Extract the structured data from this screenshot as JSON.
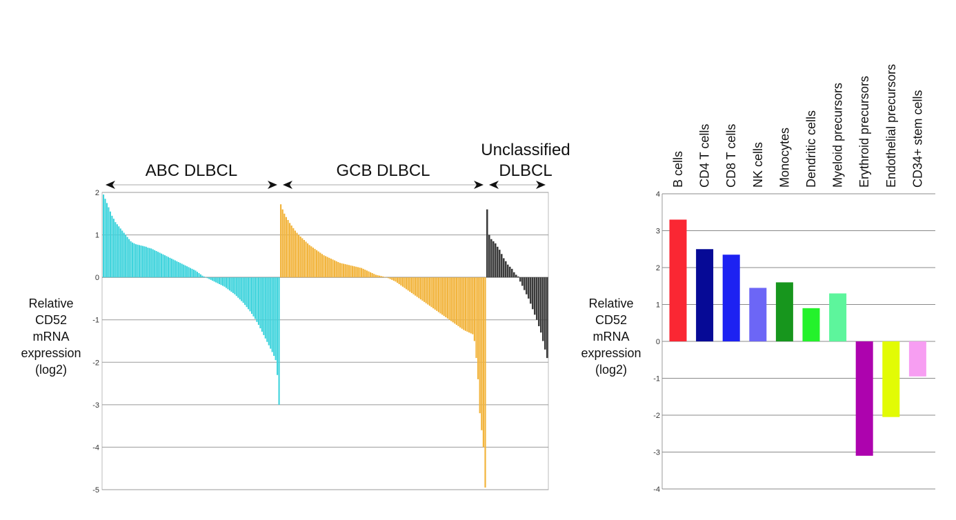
{
  "chart_data": [
    {
      "type": "bar",
      "ylabel_lines": [
        "Relative",
        "CD52",
        "mRNA",
        "expression",
        "(log2)"
      ],
      "ylim": [
        -5,
        2
      ],
      "yticks": [
        "2",
        "1",
        "0",
        "-1",
        "-2",
        "-3",
        "-4",
        "-5"
      ],
      "grid": true,
      "groups": [
        {
          "label_lines": [
            "ABC DLBCL"
          ],
          "color": "#3dd3dc",
          "values": [
            1.95,
            1.85,
            1.75,
            1.65,
            1.55,
            1.45,
            1.38,
            1.3,
            1.25,
            1.2,
            1.15,
            1.1,
            1.05,
            1.0,
            0.95,
            0.9,
            0.85,
            0.82,
            0.8,
            0.78,
            0.77,
            0.76,
            0.75,
            0.74,
            0.73,
            0.72,
            0.7,
            0.69,
            0.68,
            0.66,
            0.64,
            0.62,
            0.6,
            0.58,
            0.56,
            0.54,
            0.52,
            0.5,
            0.48,
            0.46,
            0.44,
            0.42,
            0.4,
            0.38,
            0.36,
            0.34,
            0.32,
            0.3,
            0.28,
            0.26,
            0.24,
            0.22,
            0.2,
            0.18,
            0.16,
            0.13,
            0.1,
            0.07,
            0.04,
            0.02,
            0.0,
            -0.02,
            -0.04,
            -0.06,
            -0.08,
            -0.1,
            -0.12,
            -0.14,
            -0.16,
            -0.18,
            -0.2,
            -0.22,
            -0.25,
            -0.28,
            -0.31,
            -0.34,
            -0.37,
            -0.4,
            -0.44,
            -0.48,
            -0.52,
            -0.56,
            -0.6,
            -0.65,
            -0.7,
            -0.75,
            -0.8,
            -0.86,
            -0.92,
            -0.98,
            -1.05,
            -1.12,
            -1.2,
            -1.28,
            -1.36,
            -1.44,
            -1.52,
            -1.6,
            -1.68,
            -1.76,
            -1.85,
            -1.95,
            -2.3,
            -3.0
          ]
        },
        {
          "label_lines": [
            "GCB DLBCL"
          ],
          "color": "#f2b43c",
          "values": [
            1.72,
            1.6,
            1.5,
            1.42,
            1.35,
            1.28,
            1.22,
            1.16,
            1.1,
            1.05,
            1.0,
            0.96,
            0.92,
            0.88,
            0.84,
            0.8,
            0.76,
            0.73,
            0.7,
            0.67,
            0.64,
            0.61,
            0.58,
            0.55,
            0.52,
            0.5,
            0.48,
            0.46,
            0.44,
            0.42,
            0.4,
            0.38,
            0.36,
            0.34,
            0.33,
            0.32,
            0.31,
            0.3,
            0.29,
            0.28,
            0.27,
            0.26,
            0.25,
            0.24,
            0.23,
            0.22,
            0.2,
            0.18,
            0.16,
            0.14,
            0.12,
            0.1,
            0.08,
            0.06,
            0.05,
            0.04,
            0.03,
            0.02,
            0.01,
            0.0,
            -0.02,
            -0.04,
            -0.06,
            -0.08,
            -0.1,
            -0.13,
            -0.16,
            -0.19,
            -0.22,
            -0.25,
            -0.28,
            -0.31,
            -0.34,
            -0.37,
            -0.4,
            -0.43,
            -0.46,
            -0.49,
            -0.52,
            -0.55,
            -0.58,
            -0.61,
            -0.64,
            -0.67,
            -0.7,
            -0.73,
            -0.76,
            -0.79,
            -0.82,
            -0.85,
            -0.88,
            -0.91,
            -0.94,
            -0.97,
            -1.0,
            -1.03,
            -1.06,
            -1.09,
            -1.12,
            -1.15,
            -1.18,
            -1.21,
            -1.24,
            -1.26,
            -1.28,
            -1.3,
            -1.32,
            -1.34,
            -1.5,
            -1.9,
            -2.4,
            -3.2,
            -3.6,
            -4.0,
            -4.95
          ]
        },
        {
          "label_lines": [
            "Unclassified",
            "DLBCL"
          ],
          "color": "#3a3a3a",
          "values": [
            1.6,
            1.0,
            0.9,
            0.85,
            0.8,
            0.72,
            0.65,
            0.55,
            0.45,
            0.38,
            0.3,
            0.25,
            0.2,
            0.12,
            0.06,
            0.02,
            -0.1,
            -0.2,
            -0.3,
            -0.4,
            -0.5,
            -0.62,
            -0.75,
            -0.88,
            -1.0,
            -1.15,
            -1.3,
            -1.5,
            -1.7,
            -1.9
          ]
        }
      ]
    },
    {
      "type": "bar",
      "ylabel_lines": [
        "Relative",
        "CD52",
        "mRNA",
        "expression",
        "(log2)"
      ],
      "ylim": [
        -4,
        4
      ],
      "yticks": [
        "4",
        "3",
        "2",
        "1",
        "0",
        "-1",
        "-2",
        "-3",
        "-4"
      ],
      "grid": true,
      "categories": [
        "B cells",
        "CD4 T cells",
        "CD8 T cells",
        "NK cells",
        "Monocytes",
        "Dendritic cells",
        "Myeloid precursors",
        "Erythroid precursors",
        "Endothelial precursors",
        "CD34+ stem cells"
      ],
      "values": [
        3.3,
        2.5,
        2.35,
        1.45,
        1.6,
        0.9,
        1.3,
        -3.1,
        -2.05,
        -0.95
      ],
      "colors": [
        "#fa2733",
        "#060a96",
        "#1d22f2",
        "#6c66f6",
        "#17961d",
        "#24f22b",
        "#5df59c",
        "#ad03ae",
        "#e2fb05",
        "#f79ef2"
      ]
    }
  ]
}
